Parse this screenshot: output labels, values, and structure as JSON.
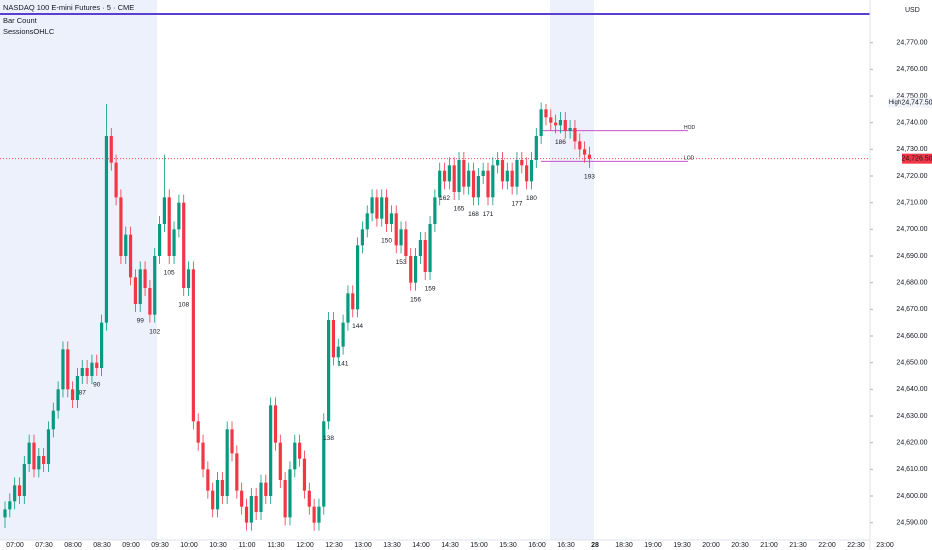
{
  "chart_data": {
    "type": "candlestick",
    "title": "NASDAQ 100 E-mini Futures · 5 · CME",
    "indicators": [
      "Bar Count",
      "SessionsOHLC"
    ],
    "currency": "USD",
    "up_color": "#089981",
    "down_color": "#f23645",
    "x_tick_labels": [
      "07:00",
      "07:30",
      "08:00",
      "08:30",
      "09:00",
      "09:30",
      "10:00",
      "10:30",
      "11:00",
      "11:30",
      "12:00",
      "12:30",
      "13:00",
      "13:30",
      "14:00",
      "14:30",
      "15:00",
      "15:30",
      "16:00",
      "16:30",
      "28",
      "18:30",
      "19:00",
      "19:30",
      "20:00",
      "20:30",
      "21:00",
      "21:30",
      "22:00",
      "22:30",
      "23:00"
    ],
    "open": [
      24592,
      24595,
      24598,
      24604,
      24600,
      24612,
      24620,
      24610,
      24615,
      24612,
      24625,
      24632,
      24640,
      24655,
      24640,
      24636,
      24645,
      24648,
      24645,
      24650,
      24648,
      24665,
      24735,
      24725,
      24712,
      24690,
      24698,
      24682,
      24672,
      24685,
      24678,
      24668,
      24690,
      24702,
      24712,
      24690,
      24700,
      24710,
      24678,
      24685,
      24628,
      24620,
      24610,
      24602,
      24595,
      24606,
      24600,
      24625,
      24616,
      24602,
      24596,
      24590,
      24600,
      24594,
      24605,
      24600,
      24634,
      24620,
      24606,
      24592,
      24610,
      24620,
      24614,
      24602,
      24596,
      24590,
      24596,
      24628,
      24666,
      24652,
      24656,
      24665,
      24676,
      24670,
      24694,
      24700,
      24706,
      24712,
      24704,
      24712,
      24702,
      24706,
      24694,
      24700,
      24690,
      24680,
      24690,
      24696,
      24684,
      24702,
      24712,
      24722,
      24718,
      24724,
      24714,
      24726,
      24716,
      24722,
      24712,
      24720,
      24722,
      24712,
      24724,
      24726,
      24718,
      24722,
      24716,
      24726,
      24724,
      24718,
      24726,
      24735,
      24745,
      24742,
      24740,
      24739,
      24741,
      24737,
      24738,
      24733,
      24730,
      24728
    ],
    "high": [
      24598,
      24601,
      24607,
      24607,
      24615,
      24623,
      24623,
      24618,
      24618,
      24628,
      24635,
      24643,
      24658,
      24658,
      24643,
      24648,
      24651,
      24651,
      24653,
      24653,
      24668,
      24747,
      24738,
      24728,
      24715,
      24701,
      24701,
      24685,
      24688,
      24688,
      24681,
      24693,
      24705,
      24728,
      24715,
      24703,
      24713,
      24713,
      24688,
      24688,
      24631,
      24623,
      24613,
      24605,
      24609,
      24609,
      24628,
      24628,
      24619,
      24605,
      24599,
      24603,
      24603,
      24608,
      24608,
      24637,
      24637,
      24623,
      24609,
      24613,
      24623,
      24623,
      24617,
      24605,
      24599,
      24599,
      24631,
      24669,
      24669,
      24659,
      24668,
      24679,
      24679,
      24697,
      24703,
      24709,
      24715,
      24715,
      24715,
      24715,
      24709,
      24709,
      24703,
      24703,
      24693,
      24693,
      24699,
      24699,
      24705,
      24715,
      24725,
      24725,
      24727,
      24727,
      24729,
      24729,
      24725,
      24725,
      24723,
      24725,
      24725,
      24727,
      24729,
      24729,
      24725,
      24725,
      24729,
      24729,
      24727,
      24729,
      24738,
      24747.5,
      24747,
      24745,
      24743,
      24744,
      24744,
      24741,
      24741,
      24736,
      24733,
      24731
    ],
    "low": [
      24588,
      24592,
      24595,
      24597,
      24597,
      24609,
      24607,
      24607,
      24609,
      24609,
      24622,
      24629,
      24637,
      24637,
      24633,
      24633,
      24642,
      24642,
      24642,
      24645,
      24645,
      24662,
      24722,
      24709,
      24687,
      24687,
      24679,
      24669,
      24669,
      24675,
      24665,
      24665,
      24687,
      24699,
      24687,
      24687,
      24697,
      24675,
      24675,
      24625,
      24617,
      24607,
      24599,
      24592,
      24592,
      24597,
      24597,
      24613,
      24599,
      24593,
      24587,
      24587,
      24591,
      24591,
      24597,
      24597,
      24617,
      24603,
      24589,
      24589,
      24607,
      24611,
      24599,
      24593,
      24587,
      24587,
      24593,
      24625,
      24649,
      24649,
      24653,
      24662,
      24667,
      24667,
      24691,
      24697,
      24703,
      24701,
      24701,
      24699,
      24699,
      24691,
      24691,
      24687,
      24677,
      24677,
      24687,
      24681,
      24681,
      24699,
      24709,
      24715,
      24715,
      24711,
      24711,
      24713,
      24713,
      24709,
      24709,
      24717,
      24709,
      24709,
      24721,
      24715,
      24715,
      24713,
      24713,
      24721,
      24715,
      24715,
      24723,
      24732,
      24739,
      24737,
      24736,
      24736,
      24734,
      24734,
      24730,
      24727,
      24725,
      24723
    ],
    "close": [
      24595,
      24598,
      24604,
      24600,
      24612,
      24620,
      24610,
      24615,
      24612,
      24625,
      24632,
      24640,
      24655,
      24640,
      24636,
      24645,
      24648,
      24645,
      24650,
      24648,
      24665,
      24735,
      24725,
      24712,
      24690,
      24698,
      24682,
      24672,
      24685,
      24678,
      24668,
      24690,
      24702,
      24712,
      24690,
      24700,
      24710,
      24678,
      24685,
      24628,
      24620,
      24610,
      24602,
      24595,
      24606,
      24600,
      24625,
      24616,
      24602,
      24596,
      24590,
      24600,
      24594,
      24605,
      24600,
      24634,
      24620,
      24606,
      24592,
      24610,
      24620,
      24614,
      24602,
      24596,
      24590,
      24596,
      24628,
      24666,
      24652,
      24656,
      24665,
      24676,
      24670,
      24694,
      24700,
      24706,
      24712,
      24704,
      24712,
      24702,
      24706,
      24694,
      24700,
      24690,
      24680,
      24690,
      24696,
      24684,
      24702,
      24712,
      24722,
      24718,
      24724,
      24714,
      24726,
      24716,
      24722,
      24712,
      24720,
      24722,
      24712,
      24724,
      24726,
      24718,
      24722,
      24716,
      24726,
      24724,
      24718,
      24726,
      24735,
      24745,
      24742,
      24740,
      24739,
      24741,
      24737,
      24738,
      24733,
      24730,
      24728,
      24726.5
    ],
    "bar_counts": [
      null,
      null,
      null,
      null,
      null,
      null,
      null,
      null,
      null,
      null,
      null,
      null,
      null,
      null,
      null,
      null,
      87,
      null,
      null,
      90,
      null,
      null,
      null,
      null,
      null,
      null,
      null,
      null,
      99,
      null,
      null,
      102,
      null,
      null,
      105,
      null,
      null,
      108,
      null,
      null,
      null,
      null,
      null,
      null,
      null,
      null,
      null,
      null,
      null,
      null,
      null,
      null,
      null,
      null,
      null,
      null,
      null,
      null,
      null,
      null,
      null,
      null,
      null,
      null,
      null,
      null,
      null,
      138,
      null,
      null,
      141,
      null,
      null,
      144,
      null,
      null,
      null,
      null,
      null,
      150,
      null,
      null,
      153,
      null,
      null,
      156,
      null,
      null,
      159,
      null,
      null,
      162,
      null,
      null,
      165,
      null,
      null,
      168,
      null,
      null,
      171,
      null,
      null,
      null,
      null,
      null,
      177,
      null,
      null,
      180,
      null,
      null,
      null,
      null,
      null,
      186,
      null,
      null,
      null,
      null,
      null,
      193
    ],
    "levels": [
      {
        "label": "HOD",
        "value": 24737
      },
      {
        "label": "LOD",
        "value": 24725.5
      }
    ],
    "last_price": {
      "value": 24726.5,
      "label": "24,726.50"
    },
    "session_high": {
      "name": "High",
      "value": 24747.5,
      "label": "24,747.50"
    },
    "ylim": [
      24583.5,
      24786
    ],
    "yticks": [
      {
        "value": 24590,
        "label": "24,590.00"
      },
      {
        "value": 24600,
        "label": "24,600.00"
      },
      {
        "value": 24610,
        "label": "24,610.00"
      },
      {
        "value": 24620,
        "label": "24,620.00"
      },
      {
        "value": 24630,
        "label": "24,630.00"
      },
      {
        "value": 24640,
        "label": "24,640.00"
      },
      {
        "value": 24650,
        "label": "24,650.00"
      },
      {
        "value": 24660,
        "label": "24,660.00"
      },
      {
        "value": 24670,
        "label": "24,670.00"
      },
      {
        "value": 24680,
        "label": "24,680.00"
      },
      {
        "value": 24690,
        "label": "24,690.00"
      },
      {
        "value": 24700,
        "label": "24,700.00"
      },
      {
        "value": 24710,
        "label": "24,710.00"
      },
      {
        "value": 24720,
        "label": "24,720.00"
      },
      {
        "value": 24730,
        "label": "24,730.00"
      },
      {
        "value": 24740,
        "label": "24,740.00"
      },
      {
        "value": 24750,
        "label": "24,750.00"
      },
      {
        "value": 24760,
        "label": "24,760.00"
      },
      {
        "value": 24770,
        "label": "24,770.00"
      }
    ],
    "grid": false
  }
}
